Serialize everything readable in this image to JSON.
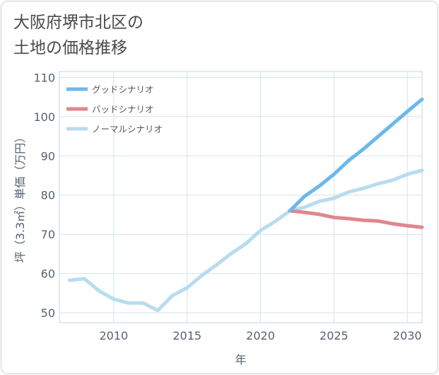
{
  "title_line1": "大阪府堺市北区の",
  "title_line2": "土地の価格推移",
  "chart_data": {
    "type": "line",
    "xlabel": "年",
    "ylabel": "坪（3.3㎡）単価（万円）",
    "xlim": [
      2006.3,
      2031
    ],
    "ylim": [
      47.5,
      111.5
    ],
    "xticks": [
      2010,
      2015,
      2020,
      2025,
      2030
    ],
    "yticks": [
      50,
      60,
      70,
      80,
      90,
      100,
      110
    ],
    "grid": true,
    "legend_position": "top-left",
    "series": [
      {
        "name": "グッドシナリオ",
        "color": "#6cb8ec",
        "x": [
          2022,
          2023,
          2024,
          2025,
          2026,
          2027,
          2028,
          2029,
          2030,
          2031
        ],
        "values": [
          76.0,
          79.7,
          82.3,
          85.3,
          88.8,
          91.7,
          94.9,
          98.1,
          101.3,
          104.4
        ]
      },
      {
        "name": "バッドシナリオ",
        "color": "#e0868e",
        "x": [
          2022,
          2023,
          2024,
          2025,
          2026,
          2027,
          2028,
          2029,
          2030,
          2031
        ],
        "values": [
          76.0,
          75.6,
          75.1,
          74.3,
          74.0,
          73.6,
          73.4,
          72.7,
          72.2,
          71.8
        ]
      },
      {
        "name": "ノーマルシナリオ",
        "color": "#b8dcef",
        "x": [
          2007,
          2008,
          2009,
          2010,
          2011,
          2012,
          2013,
          2014,
          2015,
          2016,
          2017,
          2018,
          2019,
          2020,
          2021,
          2022,
          2023,
          2024,
          2025,
          2026,
          2027,
          2028,
          2029,
          2030,
          2031
        ],
        "values": [
          58.3,
          58.7,
          55.6,
          53.5,
          52.5,
          52.5,
          50.6,
          54.4,
          56.4,
          59.5,
          62.2,
          65.1,
          67.6,
          71.0,
          73.3,
          76.0,
          76.9,
          78.4,
          79.2,
          80.8,
          81.7,
          82.9,
          83.8,
          85.3,
          86.3
        ]
      }
    ]
  }
}
